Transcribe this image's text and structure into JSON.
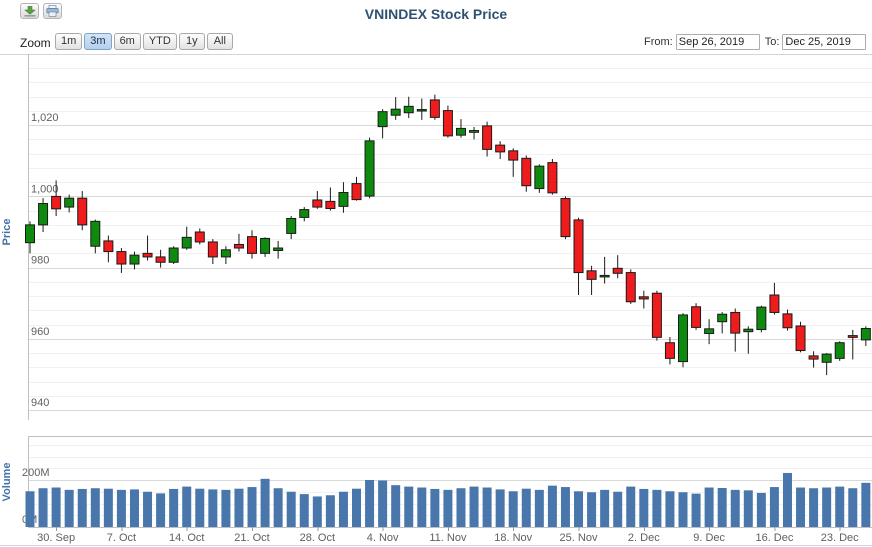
{
  "header": {
    "title": "VNINDEX Stock Price",
    "export_icon": "download-icon",
    "print_icon": "print-icon"
  },
  "range_selector": {
    "zoom_label": "Zoom",
    "buttons": [
      {
        "label": "1m",
        "selected": false
      },
      {
        "label": "3m",
        "selected": true
      },
      {
        "label": "6m",
        "selected": false
      },
      {
        "label": "YTD",
        "selected": false
      },
      {
        "label": "1y",
        "selected": false
      },
      {
        "label": "All",
        "selected": false
      }
    ],
    "from_label": "From:",
    "from_value": "Sep 26, 2019",
    "to_label": "To:",
    "to_value": "Dec 25, 2019"
  },
  "price_axis": {
    "title": "Price",
    "labels": [
      "1,020",
      "1,000",
      "980",
      "960",
      "940"
    ],
    "label_values": [
      1020,
      1000,
      980,
      960,
      940
    ],
    "major_interval": 20,
    "minor_interval": 4,
    "range_top": 1040,
    "range_bottom": 940
  },
  "volume_axis": {
    "title": "Volume",
    "labels": [
      "200M",
      "0M"
    ],
    "label_values": [
      200,
      0
    ],
    "minor_interval_millions": 50,
    "major_interval_millions": 200
  },
  "x_axis": {
    "labels": [
      "30. Sep",
      "7. Oct",
      "14. Oct",
      "21. Oct",
      "28. Oct",
      "4. Nov",
      "11. Nov",
      "18. Nov",
      "25. Nov",
      "2. Dec",
      "9. Dec",
      "16. Dec",
      "23. Dec"
    ],
    "label_indices": [
      2,
      7,
      12,
      17,
      22,
      27,
      32,
      37,
      42,
      47,
      52,
      57,
      62
    ]
  },
  "colors": {
    "candle_up": "#0e8b0e",
    "candle_down": "#ee1c1c",
    "candle_border": "#1a1a1a",
    "volume_bar": "#4977ac",
    "axis_title_blue": "#4572a7",
    "axis_label_gray": "#606060",
    "major_grid": "#d9d9d9",
    "minor_grid": "#f1f1f1",
    "axis_line": "#c0c0c0",
    "separator_blue": "#ccd6e2",
    "title_navy": "#2e5172",
    "selected_button_bg": "#b4d0ee"
  },
  "chart_data": {
    "type": "candlestick+volume-bar",
    "title": "VNINDEX Stock Price",
    "price_ylim": [
      940,
      1040
    ],
    "volume_ylim_millions": [
      0,
      380
    ],
    "grid": "horizontal-major-and-minor",
    "dates": [
      "2019-09-26",
      "2019-09-27",
      "2019-09-30",
      "2019-10-01",
      "2019-10-02",
      "2019-10-03",
      "2019-10-04",
      "2019-10-07",
      "2019-10-08",
      "2019-10-09",
      "2019-10-10",
      "2019-10-11",
      "2019-10-14",
      "2019-10-15",
      "2019-10-16",
      "2019-10-17",
      "2019-10-18",
      "2019-10-21",
      "2019-10-22",
      "2019-10-23",
      "2019-10-24",
      "2019-10-25",
      "2019-10-28",
      "2019-10-29",
      "2019-10-30",
      "2019-10-31",
      "2019-11-01",
      "2019-11-04",
      "2019-11-05",
      "2019-11-06",
      "2019-11-07",
      "2019-11-08",
      "2019-11-11",
      "2019-11-12",
      "2019-11-13",
      "2019-11-14",
      "2019-11-15",
      "2019-11-18",
      "2019-11-19",
      "2019-11-20",
      "2019-11-21",
      "2019-11-22",
      "2019-11-25",
      "2019-11-26",
      "2019-11-27",
      "2019-11-28",
      "2019-11-29",
      "2019-12-02",
      "2019-12-03",
      "2019-12-04",
      "2019-12-05",
      "2019-12-06",
      "2019-12-09",
      "2019-12-10",
      "2019-12-11",
      "2019-12-12",
      "2019-12-13",
      "2019-12-16",
      "2019-12-17",
      "2019-12-18",
      "2019-12-19",
      "2019-12-20",
      "2019-12-23",
      "2019-12-24",
      "2019-12-25"
    ],
    "ohlc": [
      [
        987.0,
        993.0,
        984.0,
        992.0
      ],
      [
        992.0,
        999.5,
        990.0,
        998.0
      ],
      [
        1000.0,
        1004.5,
        994.5,
        996.5
      ],
      [
        997.0,
        1000.5,
        995.5,
        999.5
      ],
      [
        999.5,
        1001.5,
        990.5,
        992.0
      ],
      [
        986.0,
        993.5,
        984.0,
        993.0
      ],
      [
        987.5,
        989.0,
        981.5,
        984.5
      ],
      [
        984.5,
        985.5,
        978.5,
        981.0
      ],
      [
        981.0,
        984.5,
        979.5,
        983.5
      ],
      [
        984.0,
        989.0,
        982.0,
        983.0
      ],
      [
        983.0,
        985.0,
        980.0,
        981.5
      ],
      [
        981.5,
        986.0,
        981.0,
        985.5
      ],
      [
        985.5,
        991.5,
        985.0,
        988.5
      ],
      [
        990.0,
        991.0,
        986.5,
        987.2
      ],
      [
        987.2,
        988.0,
        981.0,
        983.0
      ],
      [
        983.0,
        986.0,
        981.0,
        985.0
      ],
      [
        986.5,
        989.5,
        984.5,
        985.5
      ],
      [
        988.7,
        990.5,
        982.5,
        984.0
      ],
      [
        984.0,
        988.5,
        983.0,
        988.2
      ],
      [
        984.8,
        987.5,
        982.5,
        985.5
      ],
      [
        989.6,
        994.5,
        988.0,
        993.8
      ],
      [
        994.1,
        997.0,
        993.0,
        996.3
      ],
      [
        999.0,
        1001.5,
        996.5,
        997.0
      ],
      [
        998.6,
        1002.5,
        996.0,
        996.6
      ],
      [
        997.2,
        1004.0,
        995.4,
        1001.1
      ],
      [
        1003.6,
        1005.5,
        998.8,
        999.1
      ],
      [
        1000.1,
        1016.5,
        999.5,
        1015.6
      ],
      [
        1019.6,
        1024.5,
        1016.3,
        1023.8
      ],
      [
        1022.8,
        1027.9,
        1021.5,
        1024.5
      ],
      [
        1023.5,
        1028.0,
        1022.0,
        1025.3
      ],
      [
        1024.2,
        1027.5,
        1021.5,
        1024.4
      ],
      [
        1027.1,
        1028.6,
        1021.5,
        1022.2
      ],
      [
        1024.1,
        1025.5,
        1016.5,
        1017.0
      ],
      [
        1017.2,
        1021.7,
        1016.5,
        1019.1
      ],
      [
        1018.0,
        1019.5,
        1016.0,
        1018.5
      ],
      [
        1019.8,
        1021.0,
        1011.2,
        1013.2
      ],
      [
        1014.4,
        1015.5,
        1010.5,
        1012.5
      ],
      [
        1012.8,
        1013.5,
        1005.5,
        1010.2
      ],
      [
        1010.7,
        1011.5,
        1001.3,
        1003.0
      ],
      [
        1002.2,
        1009.0,
        1001.0,
        1008.5
      ],
      [
        1009.5,
        1010.5,
        1000.5,
        1001.0
      ],
      [
        999.4,
        1000.0,
        988.0,
        988.7
      ],
      [
        993.4,
        994.0,
        972.3,
        978.6
      ],
      [
        979.1,
        980.5,
        972.3,
        976.7
      ],
      [
        977.5,
        983.0,
        975.5,
        977.8
      ],
      [
        979.8,
        983.5,
        977.0,
        978.4
      ],
      [
        978.6,
        979.5,
        969.8,
        970.4
      ],
      [
        971.8,
        973.5,
        968.5,
        971.2
      ],
      [
        972.8,
        973.5,
        959.5,
        960.4
      ],
      [
        958.9,
        960.5,
        952.8,
        954.5
      ],
      [
        953.6,
        967.2,
        952.0,
        966.7
      ],
      [
        969.0,
        970.0,
        962.5,
        963.2
      ],
      [
        961.5,
        965.5,
        958.5,
        962.8
      ],
      [
        964.8,
        967.5,
        961.5,
        966.9
      ],
      [
        967.4,
        968.5,
        956.4,
        961.6
      ],
      [
        962.0,
        963.5,
        955.8,
        962.7
      ],
      [
        962.6,
        969.3,
        961.8,
        968.9
      ],
      [
        972.3,
        975.7,
        966.8,
        967.4
      ],
      [
        967.0,
        968.2,
        962.3,
        963.1
      ],
      [
        963.6,
        964.8,
        956.2,
        956.7
      ],
      [
        955.2,
        956.5,
        951.9,
        954.3
      ],
      [
        953.4,
        956.0,
        949.8,
        955.7
      ],
      [
        954.5,
        959.3,
        953.8,
        958.9
      ],
      [
        960.9,
        962.5,
        954.2,
        960.4
      ],
      [
        959.7,
        963.5,
        958.0,
        962.9
      ]
    ],
    "volumes_millions": [
      152,
      165,
      168,
      158,
      162,
      165,
      163,
      158,
      160,
      150,
      143,
      162,
      172,
      163,
      160,
      158,
      163,
      170,
      205,
      165,
      150,
      140,
      130,
      135,
      150,
      163,
      200,
      198,
      178,
      172,
      168,
      162,
      158,
      165,
      172,
      168,
      160,
      152,
      163,
      158,
      176,
      170,
      152,
      148,
      158,
      150,
      172,
      162,
      158,
      152,
      148,
      142,
      168,
      166,
      158,
      156,
      145,
      170,
      230,
      168,
      165,
      168,
      172,
      165,
      188
    ]
  }
}
